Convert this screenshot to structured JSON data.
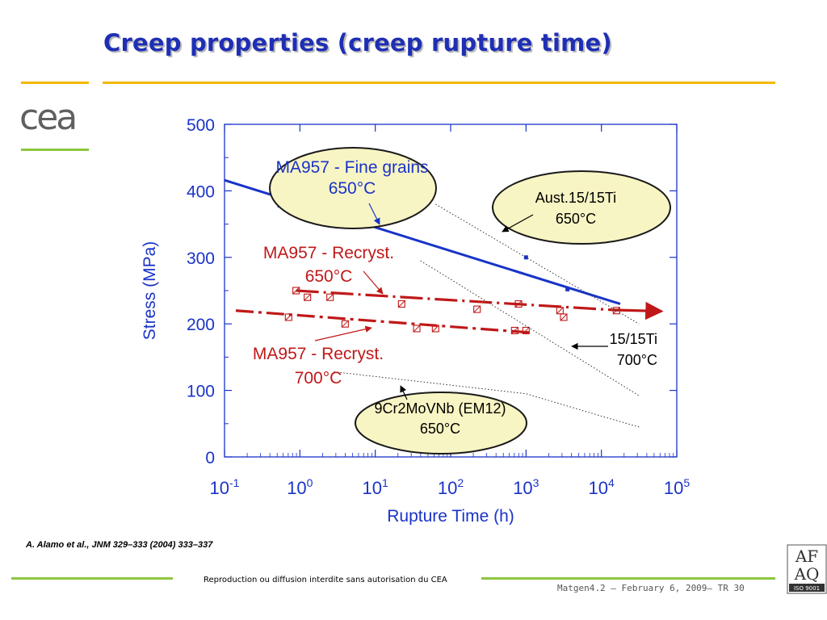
{
  "slide": {
    "title": "Creep properties (creep rupture time)",
    "citation": "A. Alamo et al., JNM 329–333 (2004) 333–337",
    "footer_center": "Reproduction ou diffusion interdite sans autorisation du CEA",
    "footer_right": "Matgen4.2 – February 6, 2009– TR 30",
    "logo_text": "cea",
    "badge": {
      "line1": "AF",
      "line2": "AQ",
      "line3": "ISO 9001"
    },
    "colors": {
      "title": "#1f2fb4",
      "accent_orange": "#f5b800",
      "accent_green": "#8cc63f"
    }
  },
  "chart_data": {
    "type": "scatter",
    "xscale": "log",
    "xlim_exp": [
      -1,
      5
    ],
    "ylim": [
      0,
      500
    ],
    "xlabel": "Rupture Time (h)",
    "ylabel": "Stress (MPa)",
    "yticks": [
      "0",
      "100",
      "200",
      "300",
      "400",
      "500"
    ],
    "xticks": [
      {
        "exp": -1,
        "base": "10",
        "sup": "-1"
      },
      {
        "exp": 0,
        "base": "10",
        "sup": "0"
      },
      {
        "exp": 1,
        "base": "10",
        "sup": "1"
      },
      {
        "exp": 2,
        "base": "10",
        "sup": "2"
      },
      {
        "exp": 3,
        "base": "10",
        "sup": "3"
      },
      {
        "exp": 4,
        "base": "10",
        "sup": "4"
      },
      {
        "exp": 5,
        "base": "10",
        "sup": "5"
      }
    ],
    "colors": {
      "blue": "#1a33c8",
      "red": "#c01818",
      "axis_label": "#1a33c8",
      "ellipse": "#f8f5c4"
    },
    "series": [
      {
        "name": "MA957 - Fine grains 650°C",
        "color": "#1a33c8",
        "marker": "square",
        "points": [
          [
            -0.27,
            378
          ],
          [
            3.0,
            300
          ],
          [
            3.55,
            252
          ]
        ],
        "fit": [
          [
            -1.0,
            416
          ],
          [
            4.25,
            230
          ]
        ]
      },
      {
        "name": "MA957 - Recryst. 650°C",
        "color": "#c01818",
        "marker": "open-square-x",
        "points": [
          [
            -0.05,
            250
          ],
          [
            0.1,
            240
          ],
          [
            0.4,
            240
          ],
          [
            1.35,
            230
          ],
          [
            2.35,
            222
          ],
          [
            2.9,
            230
          ],
          [
            3.45,
            220
          ],
          [
            3.5,
            210
          ],
          [
            4.2,
            220
          ]
        ],
        "fit": [
          [
            -0.05,
            250
          ],
          [
            4.15,
            221
          ]
        ],
        "arrow_to": [
          4.8,
          219
        ]
      },
      {
        "name": "MA957 - Recryst. 700°C",
        "color": "#c01818",
        "marker": "open-square-x",
        "points": [
          [
            -0.15,
            210
          ],
          [
            0.6,
            200
          ],
          [
            1.55,
            193
          ],
          [
            1.8,
            193
          ],
          [
            2.85,
            190
          ],
          [
            3.0,
            190
          ]
        ],
        "fit": [
          [
            -0.85,
            220
          ],
          [
            3.05,
            187
          ]
        ]
      },
      {
        "name": "Aust.15/15Ti 650°C",
        "color": "#333333",
        "style": "dotted",
        "fit": [
          [
            1.8,
            380
          ],
          [
            4.5,
            200
          ]
        ]
      },
      {
        "name": "15/15Ti 700°C",
        "color": "#333333",
        "style": "dotted",
        "fit": [
          [
            1.6,
            295
          ],
          [
            4.5,
            92
          ]
        ]
      },
      {
        "name": "9Cr2MoVNb (EM12) 650°C",
        "color": "#333333",
        "style": "dotted",
        "fit": [
          [
            0.45,
            128
          ],
          [
            3.0,
            95
          ],
          [
            4.1,
            58
          ],
          [
            4.5,
            45
          ]
        ]
      }
    ],
    "annotations": [
      {
        "lines": [
          "MA957 - Fine grains",
          "650°C"
        ],
        "color": "#1a33c8",
        "ellipse": true
      },
      {
        "lines": [
          "Aust.15/15Ti",
          "650°C"
        ],
        "color": "#000000",
        "ellipse": true
      },
      {
        "lines": [
          "MA957 - Recryst.",
          "650°C"
        ],
        "color": "#c01818",
        "ellipse": false
      },
      {
        "lines": [
          "MA957 - Recryst.",
          "700°C"
        ],
        "color": "#c01818",
        "ellipse": false
      },
      {
        "lines": [
          "15/15Ti",
          "700°C"
        ],
        "color": "#000000",
        "ellipse": false
      },
      {
        "lines": [
          "9Cr2MoVNb (EM12)",
          "650°C"
        ],
        "color": "#000000",
        "ellipse": true
      }
    ]
  }
}
